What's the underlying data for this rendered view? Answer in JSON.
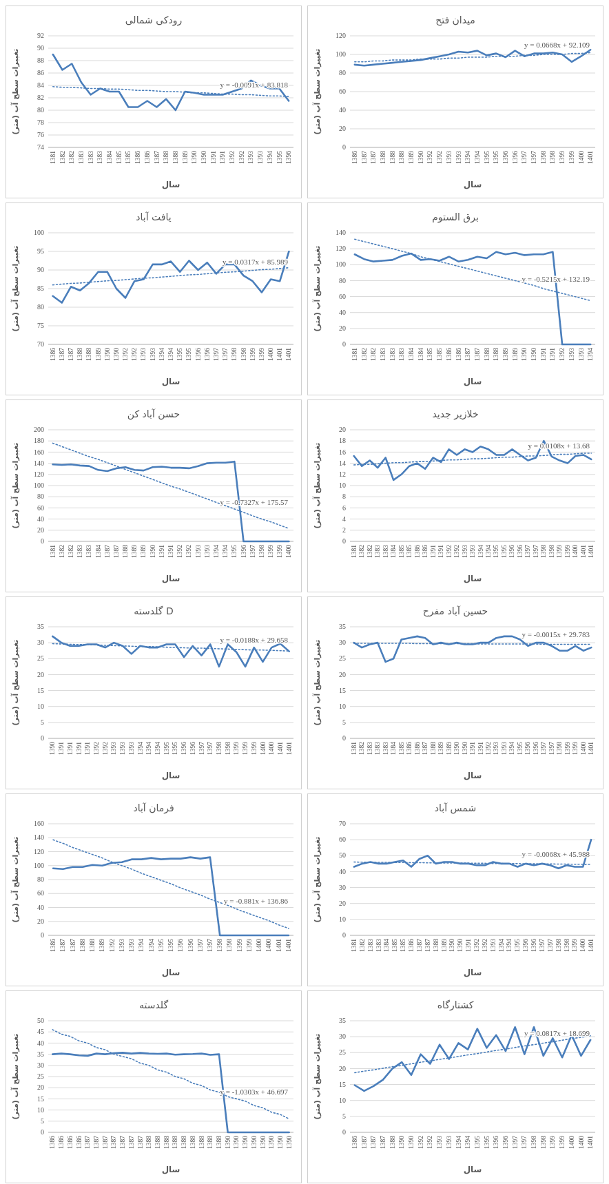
{
  "chart_data": [
    {
      "type": "line",
      "title": "رودکی شمالی",
      "xlabel": "سال",
      "ylabel": "تغییرات سطح آب (متر)",
      "grid": "y",
      "ylim": [
        74,
        92
      ],
      "yticks": [
        74,
        76,
        78,
        80,
        82,
        84,
        86,
        88,
        90,
        92
      ],
      "categories": [
        "1381",
        "1382",
        "1382",
        "1383",
        "1383",
        "1383",
        "1384",
        "1385",
        "1385",
        "1386",
        "1386",
        "1387",
        "1388",
        "1388",
        "1389",
        "1390",
        "1390",
        "1391",
        "1391",
        "1392",
        "1392",
        "1393",
        "1393",
        "1394",
        "1395",
        "1396"
      ],
      "series": [
        {
          "color": "#4a7ebb",
          "values": [
            89,
            86.5,
            87.5,
            84.5,
            82.5,
            83.5,
            83,
            83,
            80.5,
            80.5,
            81.5,
            80.5,
            81.8,
            80,
            83,
            82.8,
            82.5,
            82.5,
            82.5,
            83,
            83.5,
            84.8,
            84,
            83.5,
            83.5,
            81.5
          ]
        },
        {
          "type": "line",
          "line_style": "dotted",
          "color": "#4a7ebb",
          "values": [
            83.8,
            83.7,
            83.7,
            83.6,
            83.5,
            83.5,
            83.4,
            83.4,
            83.3,
            83.2,
            83.2,
            83.1,
            83,
            83,
            82.9,
            82.8,
            82.8,
            82.7,
            82.6,
            82.6,
            82.5,
            82.5,
            82.4,
            82.3,
            82.3,
            82.2
          ]
        }
      ],
      "annotations": [
        "y = -0.0091x + 83.818"
      ]
    },
    {
      "type": "line",
      "title": "میدان فتح",
      "xlabel": "سال",
      "ylabel": "تغییرات سطح آب (متر)",
      "grid": "y",
      "ylim": [
        0,
        120
      ],
      "yticks": [
        0,
        20,
        40,
        60,
        80,
        100,
        120
      ],
      "categories": [
        "1386",
        "1387",
        "1387",
        "1388",
        "1388",
        "1388",
        "1389",
        "1390",
        "1392",
        "1392",
        "1393",
        "1393",
        "1394",
        "1394",
        "1395",
        "1395",
        "1396",
        "1396",
        "1397",
        "1397",
        "1398",
        "1398",
        "1399",
        "1399",
        "1400",
        "1401"
      ],
      "series": [
        {
          "color": "#4a7ebb",
          "values": [
            89,
            88,
            89,
            90,
            91,
            92,
            93,
            94,
            96,
            98,
            100,
            103,
            102,
            104,
            99,
            101,
            97,
            104,
            98,
            101,
            101,
            102,
            100,
            92,
            98,
            105
          ]
        },
        {
          "type": "line",
          "line_style": "dotted",
          "color": "#4a7ebb",
          "values": [
            92,
            92,
            93,
            93,
            94,
            94,
            94,
            95,
            95,
            95,
            96,
            96,
            97,
            97,
            97,
            98,
            98,
            98,
            99,
            99,
            100,
            100,
            100,
            101,
            101,
            102
          ]
        }
      ],
      "annotations": [
        "y = 0.0668x + 92.109"
      ]
    },
    {
      "type": "line",
      "title": "یافت آباد",
      "xlabel": "سال",
      "ylabel": "تغییرات سطح آب (متر)",
      "grid": "y",
      "ylim": [
        70,
        100
      ],
      "yticks": [
        70,
        75,
        80,
        85,
        90,
        95,
        100
      ],
      "categories": [
        "1386",
        "1387",
        "1387",
        "1388",
        "1388",
        "1389",
        "1390",
        "1390",
        "1392",
        "1392",
        "1393",
        "1393",
        "1394",
        "1394",
        "1395",
        "1395",
        "1396",
        "1396",
        "1397",
        "1397",
        "1398",
        "1398",
        "1399",
        "1399",
        "1400",
        "1401",
        "1401"
      ],
      "series": [
        {
          "color": "#4a7ebb",
          "values": [
            83,
            81.2,
            85.5,
            84.5,
            86.5,
            89.5,
            89.5,
            85,
            82.5,
            87,
            87.5,
            91.5,
            91.5,
            92.3,
            89.5,
            92.5,
            90,
            92,
            89,
            91.5,
            91.5,
            88.5,
            87,
            84,
            87.5,
            87,
            95
          ]
        },
        {
          "type": "line",
          "line_style": "dotted",
          "color": "#4a7ebb",
          "values": [
            86,
            86.2,
            86.4,
            86.5,
            86.7,
            86.9,
            87.1,
            87.2,
            87.4,
            87.6,
            87.8,
            87.9,
            88.1,
            88.3,
            88.5,
            88.7,
            88.8,
            89,
            89.2,
            89.4,
            89.5,
            89.7,
            89.9,
            90.1,
            90.2,
            90.4,
            90.6
          ]
        }
      ],
      "annotations": [
        "y = 0.0317x + 85.989"
      ]
    },
    {
      "type": "line",
      "title": "برق الستوم",
      "xlabel": "سال",
      "ylabel": "تغییرات سطح آب (متر)",
      "grid": "y",
      "ylim": [
        0,
        140
      ],
      "yticks": [
        0,
        20,
        40,
        60,
        80,
        100,
        120,
        140
      ],
      "categories": [
        "1381",
        "1382",
        "1382",
        "1383",
        "1383",
        "1383",
        "1384",
        "1384",
        "1385",
        "1385",
        "1386",
        "1386",
        "1387",
        "1387",
        "1388",
        "1388",
        "1389",
        "1389",
        "1390",
        "1390",
        "1391",
        "1391",
        "1392",
        "1393",
        "1393",
        "1394"
      ],
      "series": [
        {
          "color": "#4a7ebb",
          "values": [
            113,
            107,
            104,
            105,
            106,
            111,
            114,
            106,
            107,
            105,
            110,
            104,
            106,
            110,
            108,
            116,
            113,
            115,
            112,
            113,
            113,
            116,
            0,
            0,
            0,
            0
          ]
        },
        {
          "type": "line",
          "line_style": "dotted",
          "color": "#4a7ebb",
          "values": [
            132,
            129,
            126,
            123,
            120,
            117,
            114,
            110,
            107,
            104,
            101,
            98,
            95,
            92,
            89,
            86,
            83,
            80,
            77,
            74,
            70,
            67,
            64,
            61,
            58,
            55
          ]
        }
      ],
      "annotations": [
        "y = -0.5215x + 132.19"
      ]
    },
    {
      "type": "line",
      "title": "حسن آباد کن",
      "xlabel": "سال",
      "ylabel": "تغییرات سطح آب (متر)",
      "grid": "y",
      "ylim": [
        0,
        200
      ],
      "yticks": [
        0,
        20,
        40,
        60,
        80,
        100,
        120,
        140,
        160,
        180,
        200
      ],
      "categories": [
        "1381",
        "1382",
        "1382",
        "1383",
        "1383",
        "1384",
        "1387",
        "1387",
        "1388",
        "1389",
        "1389",
        "1390",
        "1391",
        "1391",
        "1392",
        "1392",
        "1393",
        "1393",
        "1394",
        "1394",
        "1395",
        "1396",
        "1397",
        "1398",
        "1399",
        "1399",
        "1400"
      ],
      "series": [
        {
          "color": "#4a7ebb",
          "values": [
            138,
            137,
            138,
            136,
            135,
            128,
            126,
            131,
            133,
            128,
            127,
            133,
            134,
            132,
            132,
            131,
            135,
            140,
            141,
            141,
            143,
            0,
            0,
            0,
            0,
            0,
            0
          ]
        },
        {
          "type": "line",
          "line_style": "dotted",
          "color": "#4a7ebb",
          "values": [
            176,
            170,
            164,
            158,
            152,
            147,
            141,
            135,
            129,
            123,
            117,
            111,
            105,
            99,
            94,
            88,
            82,
            76,
            70,
            64,
            58,
            52,
            46,
            40,
            35,
            29,
            23
          ]
        }
      ],
      "annotations": [
        "y = -0.7327x + 175.57"
      ]
    },
    {
      "type": "line",
      "title": "خلازیر جدید",
      "xlabel": "سال",
      "ylabel": "تغییرات سطح آب (متر)",
      "grid": "y",
      "ylim": [
        0,
        20
      ],
      "yticks": [
        0,
        2,
        4,
        6,
        8,
        10,
        12,
        14,
        16,
        18,
        20
      ],
      "categories": [
        "1381",
        "1382",
        "1382",
        "1383",
        "1383",
        "1384",
        "1385",
        "1385",
        "1386",
        "1386",
        "1391",
        "1391",
        "1392",
        "1392",
        "1393",
        "1393",
        "1394",
        "1394",
        "1395",
        "1395",
        "1396",
        "1396",
        "1397",
        "1397",
        "1398",
        "1398",
        "1399",
        "1399",
        "1400",
        "1401",
        "1401"
      ],
      "series": [
        {
          "color": "#4a7ebb",
          "values": [
            15.3,
            13.5,
            14.5,
            13.2,
            15,
            11,
            12,
            13.5,
            14,
            13,
            15,
            14.2,
            16.5,
            15.5,
            16.5,
            16,
            17,
            16.5,
            15.5,
            15.5,
            16.5,
            15.5,
            14.5,
            15,
            18,
            15.2,
            14.5,
            14,
            15.3,
            15.5,
            14.7
          ]
        },
        {
          "type": "line",
          "line_style": "dotted",
          "color": "#4a7ebb",
          "values": [
            13.7,
            13.8,
            13.8,
            13.9,
            14,
            14.1,
            14.1,
            14.2,
            14.3,
            14.3,
            14.4,
            14.5,
            14.6,
            14.6,
            14.7,
            14.8,
            14.8,
            14.9,
            15,
            15.1,
            15.1,
            15.2,
            15.3,
            15.3,
            15.4,
            15.5,
            15.6,
            15.6,
            15.7,
            15.8,
            15.8
          ]
        }
      ],
      "annotations": [
        "y = 0.0108x + 13.68"
      ]
    },
    {
      "type": "line",
      "title": "گلدسته D",
      "xlabel": "سال",
      "ylabel": "تغییرات سطح آب (متر)",
      "grid": "y",
      "ylim": [
        0,
        35
      ],
      "yticks": [
        0,
        5,
        10,
        15,
        20,
        25,
        30,
        35
      ],
      "categories": [
        "1390",
        "1391",
        "1391",
        "1391",
        "1391",
        "1392",
        "1392",
        "1393",
        "1393",
        "1393",
        "1394",
        "1394",
        "1394",
        "1395",
        "1395",
        "1396",
        "1396",
        "1397",
        "1397",
        "1398",
        "1398",
        "1399",
        "1399",
        "1399",
        "1400",
        "1400",
        "1401",
        "1401"
      ],
      "series": [
        {
          "color": "#4a7ebb",
          "values": [
            32,
            30,
            29,
            29,
            29.5,
            29.5,
            28.5,
            30,
            29,
            26.5,
            29,
            28.5,
            28.5,
            29.5,
            29.5,
            25.5,
            29,
            26,
            29.5,
            22.5,
            29.5,
            27,
            22.5,
            28.5,
            24,
            28.5,
            29.7,
            27.3
          ]
        },
        {
          "type": "line",
          "line_style": "dotted",
          "color": "#4a7ebb",
          "values": [
            29.7,
            29.6,
            29.5,
            29.4,
            29.4,
            29.3,
            29.2,
            29.1,
            29,
            28.9,
            28.8,
            28.8,
            28.7,
            28.6,
            28.5,
            28.4,
            28.3,
            28.3,
            28.2,
            28.1,
            28,
            27.9,
            27.8,
            27.7,
            27.7,
            27.6,
            27.5,
            27.4
          ]
        }
      ],
      "annotations": [
        "y = -0.0188x + 29.658"
      ]
    },
    {
      "type": "line",
      "title": "حسین آباد مفرح",
      "xlabel": "سال",
      "ylabel": "تغییرات سطح آب (متر)",
      "grid": "y",
      "ylim": [
        0,
        35
      ],
      "yticks": [
        0,
        5,
        10,
        15,
        20,
        25,
        30,
        35
      ],
      "categories": [
        "1381",
        "1382",
        "1383",
        "1383",
        "1383",
        "1384",
        "1385",
        "1386",
        "1386",
        "1387",
        "1388",
        "1389",
        "1389",
        "1390",
        "1390",
        "1391",
        "1391",
        "1392",
        "1393",
        "1393",
        "1394",
        "1395",
        "1396",
        "1396",
        "1397",
        "1397",
        "1398",
        "1399",
        "1399",
        "1400",
        "1401"
      ],
      "series": [
        {
          "color": "#4a7ebb",
          "values": [
            30,
            28.5,
            29.5,
            30,
            24,
            25,
            31,
            31.5,
            32,
            31.5,
            29.5,
            30,
            29.5,
            30,
            29.5,
            29.5,
            30,
            30,
            31.5,
            32,
            32,
            31,
            29,
            30,
            30,
            29,
            27.5,
            27.5,
            29,
            27.5,
            28.5
          ]
        },
        {
          "type": "line",
          "line_style": "dotted",
          "color": "#4a7ebb",
          "values": [
            29.8,
            29.8,
            29.8,
            29.8,
            29.8,
            29.8,
            29.8,
            29.8,
            29.7,
            29.7,
            29.7,
            29.7,
            29.7,
            29.7,
            29.7,
            29.7,
            29.6,
            29.6,
            29.6,
            29.6,
            29.6,
            29.6,
            29.6,
            29.6,
            29.5,
            29.5,
            29.5,
            29.5,
            29.5,
            29.5,
            29.5
          ]
        }
      ],
      "annotations": [
        "y = -0.0015x + 29.783"
      ]
    },
    {
      "type": "line",
      "title": "فرمان آباد",
      "xlabel": "سال",
      "ylabel": "تغییرات سطح آب (متر)",
      "grid": "y",
      "ylim": [
        0,
        160
      ],
      "yticks": [
        0,
        20,
        40,
        60,
        80,
        100,
        120,
        140,
        160
      ],
      "categories": [
        "1386",
        "1387",
        "1387",
        "1388",
        "1388",
        "1389",
        "1392",
        "1393",
        "1393",
        "1394",
        "1394",
        "1395",
        "1395",
        "1396",
        "1396",
        "1397",
        "1397",
        "1398",
        "1398",
        "1399",
        "1399",
        "1400",
        "1400",
        "1401",
        "1401"
      ],
      "series": [
        {
          "color": "#4a7ebb",
          "values": [
            96,
            95,
            98,
            98,
            101,
            100,
            104,
            105,
            109,
            109,
            111,
            109,
            110,
            110,
            112,
            110,
            112,
            0,
            0,
            0,
            0,
            0,
            0,
            0,
            0
          ]
        },
        {
          "type": "line",
          "line_style": "dotted",
          "color": "#4a7ebb",
          "values": [
            137,
            132,
            126,
            121,
            116,
            111,
            105,
            100,
            95,
            89,
            84,
            79,
            74,
            68,
            63,
            58,
            52,
            47,
            42,
            36,
            31,
            26,
            21,
            15,
            10
          ]
        }
      ],
      "annotations": [
        "y = -0.881x + 136.86"
      ]
    },
    {
      "type": "line",
      "title": "شمس آباد",
      "xlabel": "سال",
      "ylabel": "تغییرات سطح آب (متر)",
      "grid": "y",
      "ylim": [
        0,
        70
      ],
      "yticks": [
        0,
        10,
        20,
        30,
        40,
        50,
        60,
        70
      ],
      "categories": [
        "1381",
        "1382",
        "1383",
        "1383",
        "1384",
        "1385",
        "1385",
        "1386",
        "1387",
        "1387",
        "1388",
        "1389",
        "1390",
        "1390",
        "1391",
        "1392",
        "1392",
        "1393",
        "1394",
        "1394",
        "1395",
        "1396",
        "1396",
        "1397",
        "1397",
        "1398",
        "1398",
        "1399",
        "1400",
        "1401"
      ],
      "series": [
        {
          "color": "#4a7ebb",
          "values": [
            43,
            45,
            46,
            45,
            45,
            46,
            47,
            43,
            48,
            50,
            45,
            46,
            46,
            45,
            45,
            44,
            44,
            46,
            45,
            45,
            43,
            45,
            44,
            45,
            44,
            42,
            44,
            43,
            43,
            60
          ]
        },
        {
          "type": "line",
          "line_style": "dotted",
          "color": "#4a7ebb",
          "values": [
            46,
            45.9,
            45.9,
            45.8,
            45.8,
            45.7,
            45.7,
            45.6,
            45.6,
            45.5,
            45.5,
            45.4,
            45.4,
            45.3,
            45.3,
            45.2,
            45.2,
            45.1,
            45.1,
            45,
            45,
            44.9,
            44.9,
            44.8,
            44.8,
            44.7,
            44.7,
            44.6,
            44.6,
            44.5
          ]
        }
      ],
      "annotations": [
        "y = -0.0068x + 45.988"
      ]
    },
    {
      "type": "line",
      "title": "گلدسته",
      "xlabel": "سال",
      "ylabel": "تغییرات سطح آب (متر)",
      "grid": "y",
      "ylim": [
        0,
        50
      ],
      "yticks": [
        0,
        5,
        10,
        15,
        20,
        25,
        30,
        35,
        40,
        45,
        50
      ],
      "categories": [
        "1386",
        "1386",
        "1386",
        "1386",
        "1387",
        "1387",
        "1387",
        "1387",
        "1387",
        "1387",
        "1387",
        "1388",
        "1388",
        "1388",
        "1388",
        "1388",
        "1388",
        "1388",
        "1388",
        "1388",
        "1390",
        "1390",
        "1390",
        "1390",
        "1390",
        "1390",
        "1390",
        "1390"
      ],
      "series": [
        {
          "color": "#4a7ebb",
          "values": [
            35,
            35.3,
            35,
            34.5,
            34.3,
            35.3,
            35,
            35.5,
            35.7,
            35.3,
            35.6,
            35.3,
            35.2,
            35.3,
            34.8,
            35,
            35.1,
            35.3,
            34.7,
            35,
            0,
            0,
            0,
            0,
            0,
            0,
            0,
            0
          ]
        },
        {
          "type": "line",
          "line_style": "dotted",
          "color": "#4a7ebb",
          "values": [
            46,
            44,
            43,
            41,
            40,
            38,
            37,
            35,
            34,
            33,
            31,
            30,
            28,
            27,
            25,
            24,
            22,
            21,
            19,
            18,
            16,
            15,
            14,
            12,
            11,
            9,
            8,
            6
          ]
        }
      ],
      "annotations": [
        "y = -1.0303x + 46.697"
      ]
    },
    {
      "type": "line",
      "title": "کشتارگاه",
      "xlabel": "سال",
      "ylabel": "تغییرات سطح آب (متر)",
      "grid": "y",
      "ylim": [
        0,
        35
      ],
      "yticks": [
        0,
        5,
        10,
        15,
        20,
        25,
        30,
        35
      ],
      "categories": [
        "1386",
        "1387",
        "1387",
        "1387",
        "1388",
        "1390",
        "1390",
        "1392",
        "1392",
        "1393",
        "1393",
        "1394",
        "1394",
        "1395",
        "1395",
        "1396",
        "1396",
        "1397",
        "1397",
        "1398",
        "1398",
        "1399",
        "1399",
        "1400",
        "1400",
        "1401"
      ],
      "series": [
        {
          "color": "#4a7ebb",
          "values": [
            14.8,
            13,
            14.5,
            16.5,
            20,
            22,
            18,
            24.5,
            21.5,
            27.5,
            23,
            28,
            26,
            32.5,
            26.5,
            30.5,
            25.5,
            33,
            24.5,
            33,
            24,
            29.5,
            23.5,
            30.5,
            24,
            29
          ]
        },
        {
          "type": "line",
          "line_style": "dotted",
          "color": "#4a7ebb",
          "values": [
            18.7,
            19.2,
            19.6,
            20.1,
            20.6,
            21,
            21.5,
            22,
            22.4,
            22.9,
            23.3,
            23.8,
            24.3,
            24.7,
            25.2,
            25.7,
            26.1,
            26.6,
            27.1,
            27.5,
            28,
            28.4,
            28.9,
            29.4,
            29.8,
            30.3
          ]
        }
      ],
      "annotations": [
        "y = 0.0817x + 18.699"
      ]
    }
  ]
}
